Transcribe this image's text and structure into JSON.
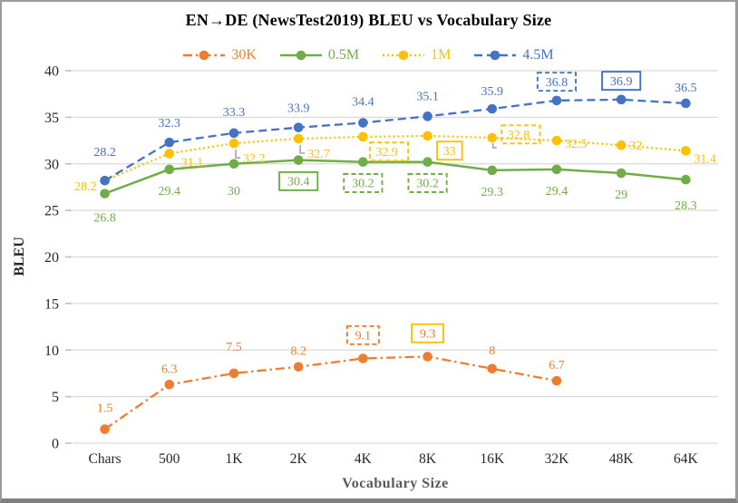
{
  "chart_data": {
    "type": "line",
    "title": "EN→DE (NewsTest2019) BLEU vs Vocabulary Size",
    "xlabel": "Vocabulary Size",
    "ylabel": "BLEU",
    "ylim": [
      0,
      40
    ],
    "yticks": [
      0,
      5,
      10,
      15,
      20,
      25,
      30,
      35,
      40
    ],
    "grid": "horizontal-light-gray",
    "legend_position": "top-center",
    "categories": [
      "Chars",
      "500",
      "1K",
      "2K",
      "4K",
      "8K",
      "16K",
      "32K",
      "48K",
      "64K"
    ],
    "colors": {
      "grid": "#D9D9D9",
      "tick_text": "#262626",
      "leader": "#A6A6A6",
      "axis_title_x": "#595959",
      "axis_title_y": "#262626"
    },
    "series": [
      {
        "name": "30K",
        "color": "#ED7D31",
        "line_style": "dashdot",
        "marker": "circle",
        "values": [
          1.5,
          6.3,
          7.5,
          8.2,
          9.1,
          9.3,
          8.0,
          6.7,
          null,
          null
        ],
        "labels": [
          {
            "text": "1.5",
            "pos": "above",
            "dy": -6
          },
          {
            "text": "6.3",
            "pos": "above"
          },
          {
            "text": "7.5",
            "pos": "above",
            "dy": -12
          },
          {
            "text": "8.2",
            "pos": "above"
          },
          {
            "text": "9.1",
            "pos": "above",
            "dy": -8,
            "box": "dashed"
          },
          {
            "text": "9.3",
            "pos": "above",
            "dy": -8,
            "box": "solid",
            "box_color": "#FFC000"
          },
          {
            "text": "8",
            "pos": "above",
            "dy": -3
          },
          {
            "text": "6.7",
            "pos": "above"
          },
          null,
          null
        ]
      },
      {
        "name": "0.5M",
        "color": "#70AD47",
        "line_style": "solid",
        "marker": "circle",
        "values": [
          26.8,
          29.4,
          30.0,
          30.4,
          30.2,
          30.2,
          29.3,
          29.4,
          29.0,
          28.3
        ],
        "labels": [
          {
            "text": "26.8",
            "pos": "below",
            "dy": 3
          },
          {
            "text": "29.4",
            "pos": "below"
          },
          {
            "text": "30",
            "pos": "below",
            "dy": 6
          },
          {
            "text": "30.4",
            "pos": "below",
            "box": "solid"
          },
          {
            "text": "30.2",
            "pos": "below",
            "box": "dashed"
          },
          {
            "text": "30.2",
            "pos": "below",
            "box": "dashed"
          },
          {
            "text": "29.3",
            "pos": "below"
          },
          {
            "text": "29.4",
            "pos": "below"
          },
          {
            "text": "29",
            "pos": "below"
          },
          {
            "text": "28.3",
            "pos": "below",
            "dy": 5
          }
        ]
      },
      {
        "name": "1M",
        "color": "#FFC000",
        "line_style": "dotted",
        "marker": "circle",
        "values": [
          28.2,
          31.1,
          32.2,
          32.7,
          32.9,
          33.0,
          32.8,
          32.5,
          32.0,
          31.4
        ],
        "labels": [
          {
            "text": "28.2",
            "pos": "left",
            "dy": 6
          },
          {
            "text": "31.1",
            "pos": "below-right",
            "dx": 3,
            "dy": -7
          },
          {
            "text": "32.2",
            "pos": "below-right",
            "leader": true
          },
          {
            "text": "32.7",
            "pos": "below-right",
            "leader": true
          },
          {
            "text": "32.9",
            "pos": "below-right",
            "dx": 4,
            "box": "dashed"
          },
          {
            "text": "33",
            "pos": "below-right",
            "dx": 7,
            "box": "solid"
          },
          {
            "text": "32.8",
            "pos": "right",
            "dx": 8,
            "dy": -4,
            "box": "dashed",
            "leader": true
          },
          {
            "text": "32.5",
            "pos": "right",
            "dy": 3
          },
          {
            "text": "32",
            "pos": "right"
          },
          {
            "text": "31.4",
            "pos": "right",
            "dy": 8
          }
        ]
      },
      {
        "name": "4.5M",
        "color": "#4472C4",
        "line_style": "dashed",
        "marker": "circle",
        "values": [
          28.2,
          32.3,
          33.3,
          33.9,
          34.4,
          35.1,
          35.9,
          36.8,
          36.9,
          36.5
        ],
        "labels": [
          {
            "text": "28.2",
            "pos": "above",
            "dy": -14
          },
          {
            "text": "32.3",
            "pos": "above",
            "dy": -4
          },
          {
            "text": "33.3",
            "pos": "above",
            "dy": -6
          },
          {
            "text": "33.9",
            "pos": "above",
            "dy": -4
          },
          {
            "text": "34.4",
            "pos": "above",
            "dy": -6
          },
          {
            "text": "35.1",
            "pos": "above",
            "dy": -5
          },
          {
            "text": "35.9",
            "pos": "above",
            "dy": -2
          },
          {
            "text": "36.8",
            "pos": "above",
            "dy": -3,
            "box": "dashed"
          },
          {
            "text": "36.9",
            "pos": "above",
            "dy": -3,
            "box": "solid"
          },
          {
            "text": "36.5",
            "pos": "above"
          }
        ]
      }
    ]
  }
}
